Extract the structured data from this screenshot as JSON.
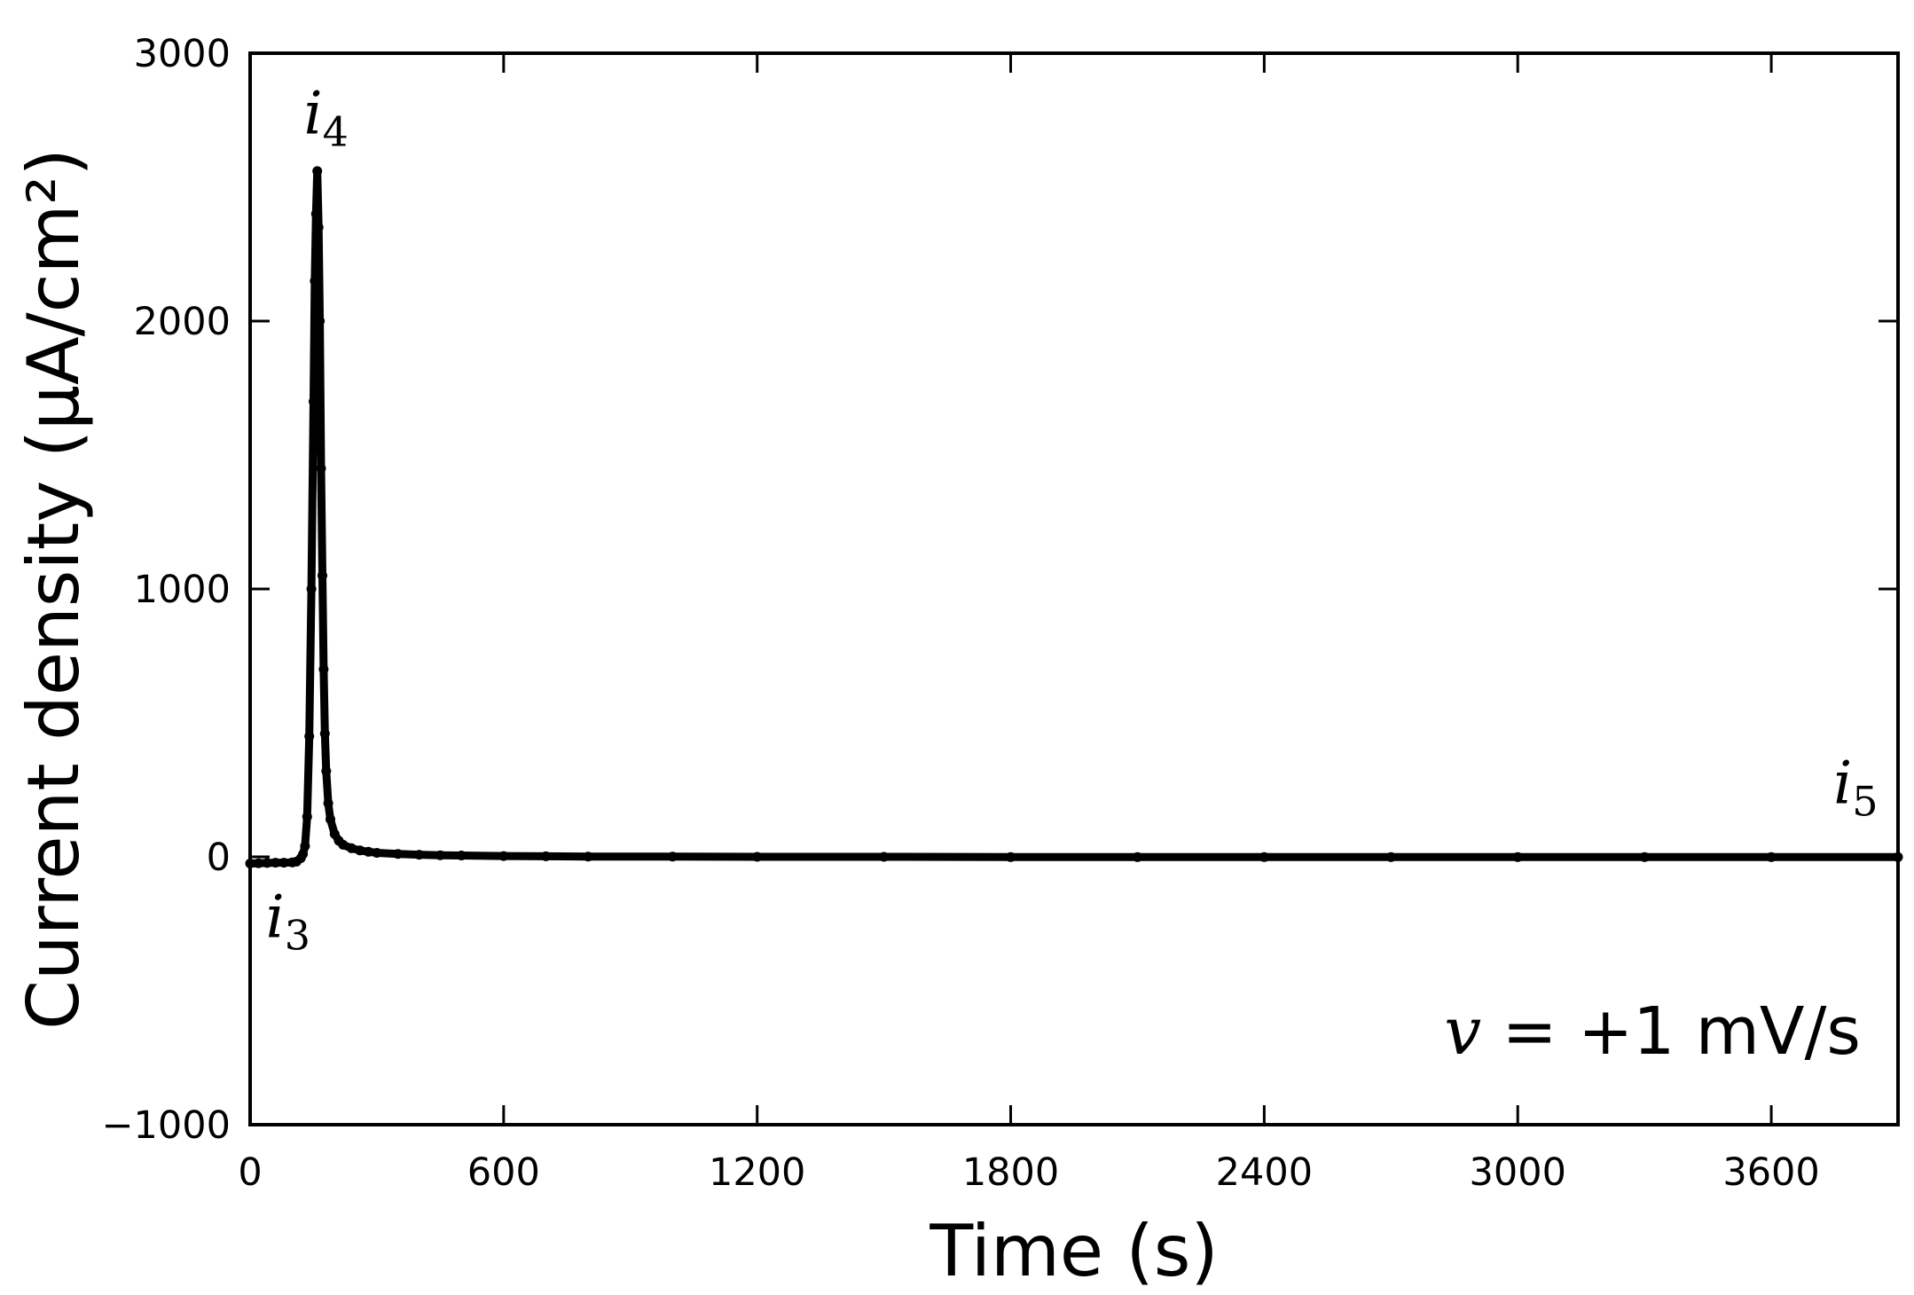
{
  "chart_data": {
    "type": "scatter",
    "title": "",
    "xlabel": "Time (s)",
    "ylabel": "Current density (μA/cm²)",
    "xlim": [
      0,
      3900
    ],
    "ylim": [
      -1000,
      3000
    ],
    "xticks": [
      0,
      600,
      1200,
      1800,
      2400,
      3000,
      3600
    ],
    "yticks": [
      -1000,
      0,
      1000,
      2000,
      3000
    ],
    "xtick_labels": [
      "0",
      "600",
      "1200",
      "1800",
      "2400",
      "3000",
      "3600"
    ],
    "ytick_labels": [
      "−1000",
      "0",
      "1000",
      "2000",
      "3000"
    ],
    "grid": false,
    "series": [
      {
        "color": "#000000",
        "x": [
          0,
          20,
          40,
          60,
          80,
          100,
          110,
          120,
          125,
          130,
          135,
          140,
          145,
          150,
          153,
          156,
          159,
          162,
          165,
          168,
          171,
          174,
          177,
          180,
          185,
          190,
          200,
          210,
          220,
          240,
          260,
          280,
          300,
          350,
          400,
          450,
          500,
          600,
          700,
          800,
          1000,
          1200,
          1500,
          1800,
          2100,
          2400,
          2700,
          3000,
          3300,
          3600,
          3900
        ],
        "y": [
          -25,
          -24,
          -23,
          -22,
          -22,
          -21,
          -18,
          -5,
          10,
          40,
          150,
          450,
          1000,
          1700,
          2150,
          2400,
          2560,
          2350,
          2000,
          1450,
          1050,
          700,
          460,
          320,
          200,
          140,
          85,
          60,
          45,
          32,
          24,
          19,
          15,
          11,
          8,
          6,
          5,
          3,
          2,
          1,
          1,
          0,
          0,
          -1,
          -1,
          -1,
          -1,
          -1,
          -1,
          -1,
          -1
        ]
      }
    ],
    "annotations": [
      {
        "base": "i",
        "subscript": "3",
        "x": 90,
        "y": -300
      },
      {
        "base": "i",
        "subscript": "4",
        "x": 180,
        "y": 2700
      },
      {
        "base": "i",
        "subscript": "5",
        "x": 3800,
        "y": 200
      }
    ],
    "rate_label": {
      "symbol": "v",
      "text": " = +1 mV/s"
    }
  }
}
